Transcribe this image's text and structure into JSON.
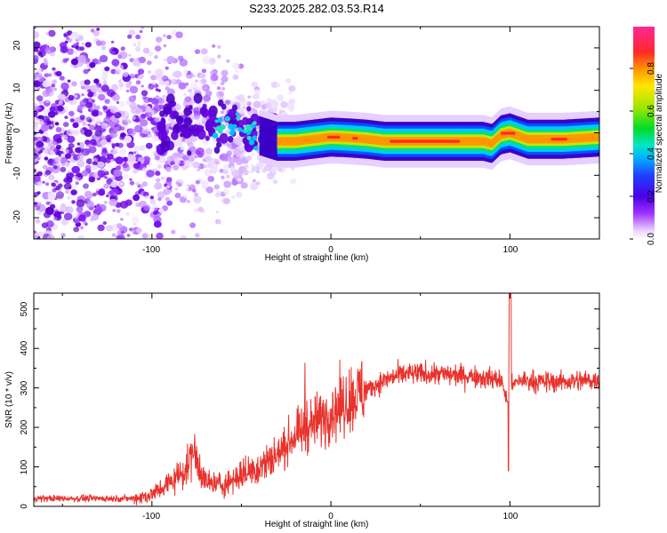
{
  "title": "S233.2025.282.03.53.R14",
  "chart_data": [
    {
      "type": "heatmap",
      "title": "S233.2025.282.03.53.R14",
      "xlabel": "Height of straight line (km)",
      "ylabel": "Frequency (Hz)",
      "xlim": [
        -166,
        150
      ],
      "ylim": [
        -25,
        25
      ],
      "xticks": [
        "-100",
        "0",
        "100"
      ],
      "yticks": [
        "20",
        "10",
        "0",
        "-10",
        "-20"
      ],
      "colorbar": {
        "label": "Normalized spectral amplitude",
        "range": [
          0.0,
          1.0
        ],
        "ticks": [
          "0.0",
          "0.2",
          "0.4",
          "0.6",
          "0.8"
        ]
      },
      "features": {
        "scatter_region_x": [
          -166,
          -30
        ],
        "line_center_hz": [
          [
            -60,
            2.0
          ],
          [
            -45,
            0.0
          ],
          [
            -30,
            -2.0
          ],
          [
            -20,
            -2.0
          ],
          [
            -10,
            -1.5
          ],
          [
            0,
            -1.0
          ],
          [
            10,
            -1.2
          ],
          [
            20,
            -1.5
          ],
          [
            30,
            -2.0
          ],
          [
            50,
            -2.0
          ],
          [
            70,
            -2.0
          ],
          [
            85,
            -2.0
          ],
          [
            90,
            -2.5
          ],
          [
            95,
            -0.5
          ],
          [
            100,
            0.0
          ],
          [
            110,
            -1.5
          ],
          [
            130,
            -1.5
          ],
          [
            150,
            -1.0
          ]
        ]
      }
    },
    {
      "type": "line",
      "xlabel": "Height of straight line (km)",
      "ylabel": "SNR (10 * v/v)",
      "xlim": [
        -166,
        150
      ],
      "ylim": [
        0,
        540
      ],
      "xticks": [
        "-100",
        "0",
        "100"
      ],
      "yticks": [
        "0",
        "100",
        "200",
        "300",
        "400",
        "500"
      ],
      "color": "#e8322c",
      "series_envelope": {
        "name": "SNR",
        "x": [
          -166,
          -110,
          -100,
          -90,
          -80,
          -78,
          -75,
          -70,
          -60,
          -50,
          -40,
          -30,
          -20,
          -15,
          -10,
          0,
          10,
          20,
          30,
          40,
          60,
          80,
          95,
          99,
          100,
          101,
          105,
          120,
          150
        ],
        "values": [
          20,
          20,
          30,
          60,
          100,
          130,
          120,
          60,
          55,
          80,
          100,
          130,
          180,
          190,
          210,
          240,
          270,
          295,
          320,
          335,
          335,
          330,
          320,
          260,
          450,
          300,
          320,
          315,
          320
        ]
      }
    }
  ]
}
